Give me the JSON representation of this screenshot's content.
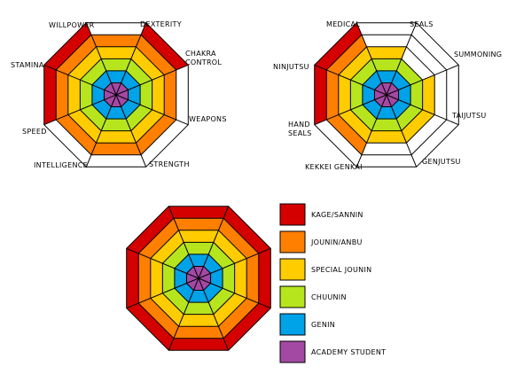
{
  "levels": [
    {
      "name": "KAGE/SANNIN",
      "color": "#d40000"
    },
    {
      "name": "JOUNIN/ANBU",
      "color": "#ff7f00"
    },
    {
      "name": "SPECIAL JOUNIN",
      "color": "#ffcc00"
    },
    {
      "name": "CHUUNIN",
      "color": "#b6e51e"
    },
    {
      "name": "GENIN",
      "color": "#00a2e8"
    },
    {
      "name": "ACADEMY STUDENT",
      "color": "#a349a4"
    }
  ],
  "chart_data": [
    {
      "type": "radar",
      "axes": [
        "DEXTERITY",
        "CHAKRA CONTROL",
        "WEAPONS",
        "STRENGTH",
        "INTELLIGENCE",
        "SPEED",
        "STAMINA",
        "WILLPOWER"
      ],
      "max_level": 6,
      "values": [
        6,
        5,
        5,
        5,
        5,
        6,
        6,
        5
      ]
    },
    {
      "type": "radar",
      "axes": [
        "SEALS",
        "SUMMONING",
        "TAIJUTSU",
        "GENJUTSU",
        "KEKKEI GENKAI",
        "HAND SEALS",
        "NINJUTSU",
        "MEDICAL"
      ],
      "max_level": 6,
      "values": [
        3,
        4,
        4,
        4,
        5,
        6,
        6,
        4
      ]
    },
    {
      "type": "radar",
      "axes": [
        "",
        "",
        "",
        "",
        "",
        "",
        "",
        ""
      ],
      "max_level": 6,
      "values": [
        6,
        6,
        6,
        6,
        6,
        6,
        6,
        6
      ]
    }
  ]
}
